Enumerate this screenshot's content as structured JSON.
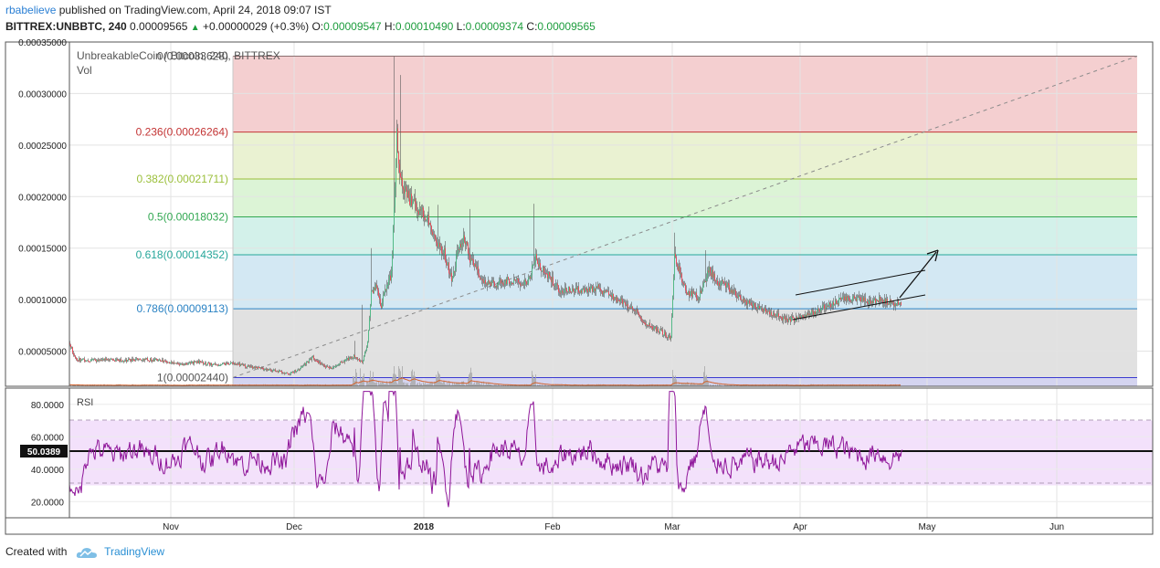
{
  "header": {
    "user": "rbabelieve",
    "published_text": "published on TradingView.com, April 24, 2018 09:07 IST",
    "symbol": "BITTREX:UNBBTC, 240",
    "last": "0.00009565",
    "change": "+0.00000029 (+0.3%)",
    "o_label": "O:",
    "o": "0.00009547",
    "h_label": "H:",
    "h": "0.00010490",
    "l_label": "L:",
    "l": "0.00009374",
    "c_label": "C:",
    "c": "0.00009565"
  },
  "legend": {
    "title": "UnbreakableCoin / Bitcoin, 240, BITTREX",
    "vol": "Vol"
  },
  "footer": {
    "created_with": "Created with",
    "brand": "TradingView"
  },
  "colors": {
    "candle_up": "#53b987",
    "candle_down": "#eb4d5c",
    "wick": "#5a5a5a",
    "rsi_line": "#8e1599",
    "rsi_band": "#f3e1fb",
    "volume": "#a7a7a7",
    "volume_ma": "#d1632e"
  },
  "chart_data": [
    {
      "type": "candlestick",
      "title": "UnbreakableCoin / Bitcoin, 240, BITTREX",
      "x_ticks": [
        "Nov",
        "Dec",
        "2018",
        "Feb",
        "Mar",
        "Apr",
        "May",
        "Jun"
      ],
      "y_ticks": [
        "0.00005000",
        "0.00010000",
        "0.00015000",
        "0.00020000",
        "0.00025000",
        "0.00030000",
        "0.00035000"
      ],
      "ylim": [
        1.15e-05,
        0.00035
      ],
      "fib_levels": [
        {
          "label": "0(0.00033628)",
          "ratio": 0,
          "price": 0.00033628,
          "line": "#8b6f6f",
          "text": "#555555",
          "fill": "#f4cfd0"
        },
        {
          "label": "0.236(0.00026264)",
          "ratio": 0.236,
          "price": 0.00026264,
          "line": "#c33434",
          "text": "#c33434",
          "fill": "#eaf2d2"
        },
        {
          "label": "0.382(0.00021711)",
          "ratio": 0.382,
          "price": 0.00021711,
          "line": "#9bbf3a",
          "text": "#9bbf3a",
          "fill": "#dcf4d6"
        },
        {
          "label": "0.5(0.00018032)",
          "ratio": 0.5,
          "price": 0.00018032,
          "line": "#32a852",
          "text": "#32a852",
          "fill": "#d3f1ea"
        },
        {
          "label": "0.618(0.00014352)",
          "ratio": 0.618,
          "price": 0.00014352,
          "line": "#26a69a",
          "text": "#26a69a",
          "fill": "#d3e8f3"
        },
        {
          "label": "0.786(0.00009113)",
          "ratio": 0.786,
          "price": 9.113e-05,
          "line": "#2b83c4",
          "text": "#2b83c4",
          "fill": "#e1e1e1"
        },
        {
          "label": "1(0.00002440)",
          "ratio": 1,
          "price": 2.44e-05,
          "line": "#3b3bd0",
          "text": "#555555",
          "fill": "#d4d4f0"
        }
      ],
      "price_path": [
        [
          0,
          5.8e-05
        ],
        [
          6,
          4.2e-05
        ],
        [
          22,
          4.1e-05
        ],
        [
          40,
          4.2e-05
        ],
        [
          60,
          4.1e-05
        ],
        [
          80,
          4.25e-05
        ],
        [
          100,
          4.05e-05
        ],
        [
          120,
          3.7e-05
        ],
        [
          140,
          3.95e-05
        ],
        [
          160,
          3.65e-05
        ],
        [
          178,
          3.85e-05
        ],
        [
          195,
          3.5e-05
        ],
        [
          205,
          3.4e-05
        ],
        [
          225,
          3.1e-05
        ],
        [
          240,
          2.8e-05
        ],
        [
          252,
          3.3e-05
        ],
        [
          266,
          4.4e-05
        ],
        [
          274,
          3.8e-05
        ],
        [
          284,
          3.3e-05
        ],
        [
          298,
          4e-05
        ],
        [
          312,
          4.5e-05
        ],
        [
          320,
          3.8e-05
        ],
        [
          326,
          5.8e-05
        ],
        [
          330,
          0.000105
        ],
        [
          336,
          0.000113
        ],
        [
          340,
          9.2e-05
        ],
        [
          346,
          0.00011
        ],
        [
          352,
          0.000125
        ],
        [
          358,
          0.00026
        ],
        [
          361,
          0.00022
        ],
        [
          366,
          0.000205
        ],
        [
          374,
          0.000195
        ],
        [
          382,
          0.000188
        ],
        [
          392,
          0.00018
        ],
        [
          400,
          0.000155
        ],
        [
          410,
          0.000145
        ],
        [
          418,
          0.00012
        ],
        [
          426,
          0.00015
        ],
        [
          432,
          0.00016
        ],
        [
          438,
          0.00014
        ],
        [
          446,
          0.000128
        ],
        [
          455,
          0.000115
        ],
        [
          465,
          0.000115
        ],
        [
          476,
          0.000118
        ],
        [
          488,
          0.00012
        ],
        [
          500,
          0.000115
        ],
        [
          510,
          0.00014
        ],
        [
          516,
          0.00013
        ],
        [
          525,
          0.000122
        ],
        [
          535,
          0.00011
        ],
        [
          545,
          0.00011
        ],
        [
          560,
          0.000109
        ],
        [
          575,
          0.000112
        ],
        [
          590,
          0.000106
        ],
        [
          608,
          9.5e-05
        ],
        [
          620,
          8.8e-05
        ],
        [
          632,
          7.6e-05
        ],
        [
          645,
          7e-05
        ],
        [
          658,
          6.2e-05
        ],
        [
          662,
          0.000145
        ],
        [
          668,
          0.000125
        ],
        [
          675,
          0.000108
        ],
        [
          688,
          0.000102
        ],
        [
          700,
          0.00013
        ],
        [
          708,
          0.000118
        ],
        [
          716,
          0.000115
        ],
        [
          726,
          0.000108
        ],
        [
          736,
          0.0001
        ],
        [
          748,
          9.5e-05
        ],
        [
          760,
          9e-05
        ],
        [
          772,
          8.5e-05
        ],
        [
          785,
          8e-05
        ],
        [
          796,
          8.2e-05
        ],
        [
          808,
          8.6e-05
        ],
        [
          822,
          9.1e-05
        ],
        [
          835,
          9.6e-05
        ],
        [
          850,
          0.000101
        ],
        [
          865,
          0.0001
        ],
        [
          878,
          9.8e-05
        ],
        [
          890,
          0.0001
        ],
        [
          902,
          9.6e-05
        ],
        [
          910,
          9.56e-05
        ]
      ],
      "spikes": [
        [
          312,
          6e-05
        ],
        [
          320,
          9.5e-05
        ],
        [
          330,
          0.00015
        ],
        [
          355,
          0.000336
        ],
        [
          362,
          0.000318
        ],
        [
          376,
          0.00018
        ],
        [
          403,
          0.000192
        ],
        [
          438,
          0.000188
        ],
        [
          508,
          0.000193
        ],
        [
          662,
          0.000165
        ],
        [
          696,
          0.000148
        ]
      ],
      "rsi": {
        "current": "50.0389",
        "ticks": [
          "20.0000",
          "40.0000",
          "60.0000",
          "80.0000"
        ],
        "upper": 70,
        "lower": 30,
        "ylim": [
          10,
          90
        ]
      }
    }
  ]
}
